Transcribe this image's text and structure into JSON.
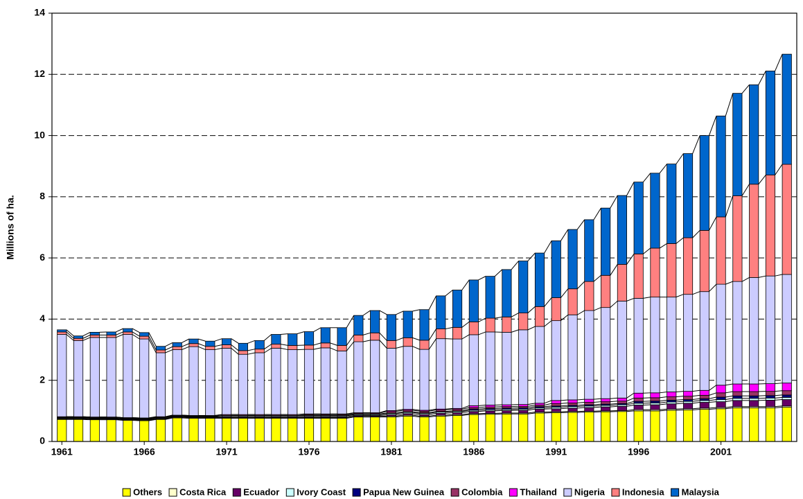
{
  "chart_data": {
    "type": "stacked_bar",
    "y_label": "Millions of ha.",
    "x": [
      1961,
      1962,
      1963,
      1964,
      1965,
      1966,
      1967,
      1968,
      1969,
      1970,
      1971,
      1972,
      1973,
      1974,
      1975,
      1976,
      1977,
      1978,
      1979,
      1980,
      1981,
      1982,
      1983,
      1984,
      1985,
      1986,
      1987,
      1988,
      1989,
      1990,
      1991,
      1992,
      1993,
      1994,
      1995,
      1996,
      1997,
      1998,
      1999,
      2000,
      2001,
      2002,
      2003,
      2004,
      2005
    ],
    "xlim": [
      1960.4,
      2005.6
    ],
    "xticks": [
      1961,
      1966,
      1971,
      1976,
      1981,
      1986,
      1991,
      1996,
      2001
    ],
    "ylim": [
      0,
      14
    ],
    "yticks": [
      0,
      2,
      4,
      6,
      8,
      10,
      12,
      14
    ],
    "grid": true,
    "legend": "bottom",
    "series": [
      {
        "name": "Others",
        "color": "#ffff00",
        "values": [
          0.72,
          0.72,
          0.71,
          0.71,
          0.69,
          0.68,
          0.72,
          0.77,
          0.76,
          0.76,
          0.76,
          0.76,
          0.76,
          0.76,
          0.76,
          0.76,
          0.76,
          0.76,
          0.8,
          0.8,
          0.8,
          0.83,
          0.8,
          0.83,
          0.85,
          0.88,
          0.89,
          0.9,
          0.9,
          0.93,
          0.94,
          0.95,
          0.96,
          0.97,
          0.98,
          1.0,
          1.0,
          1.02,
          1.03,
          1.05,
          1.07,
          1.1,
          1.1,
          1.1,
          1.12
        ]
      },
      {
        "name": "Costa Rica",
        "color": "#ffffcc",
        "values": [
          0.02,
          0.02,
          0.02,
          0.02,
          0.02,
          0.02,
          0.02,
          0.02,
          0.02,
          0.02,
          0.02,
          0.02,
          0.02,
          0.02,
          0.02,
          0.02,
          0.02,
          0.02,
          0.02,
          0.02,
          0.03,
          0.03,
          0.03,
          0.03,
          0.03,
          0.03,
          0.03,
          0.03,
          0.03,
          0.03,
          0.03,
          0.03,
          0.03,
          0.03,
          0.03,
          0.04,
          0.04,
          0.04,
          0.04,
          0.04,
          0.04,
          0.04,
          0.04,
          0.04,
          0.04
        ]
      },
      {
        "name": "Ecuador",
        "color": "#660066",
        "values": [
          0.02,
          0.02,
          0.02,
          0.02,
          0.02,
          0.02,
          0.02,
          0.02,
          0.02,
          0.02,
          0.03,
          0.03,
          0.03,
          0.03,
          0.03,
          0.03,
          0.03,
          0.03,
          0.03,
          0.03,
          0.04,
          0.05,
          0.05,
          0.06,
          0.06,
          0.07,
          0.08,
          0.08,
          0.09,
          0.1,
          0.1,
          0.11,
          0.12,
          0.13,
          0.14,
          0.15,
          0.16,
          0.17,
          0.18,
          0.19,
          0.19,
          0.2,
          0.2,
          0.21,
          0.21
        ]
      },
      {
        "name": "Ivory Coast",
        "color": "#ccffff",
        "values": [
          0.02,
          0.02,
          0.02,
          0.02,
          0.02,
          0.02,
          0.02,
          0.02,
          0.02,
          0.02,
          0.03,
          0.03,
          0.03,
          0.03,
          0.03,
          0.03,
          0.03,
          0.03,
          0.03,
          0.03,
          0.04,
          0.04,
          0.04,
          0.04,
          0.04,
          0.04,
          0.04,
          0.04,
          0.04,
          0.04,
          0.05,
          0.05,
          0.05,
          0.05,
          0.05,
          0.06,
          0.06,
          0.06,
          0.06,
          0.06,
          0.07,
          0.07,
          0.07,
          0.07,
          0.07
        ]
      },
      {
        "name": "Papua New Guinea",
        "color": "#000080",
        "values": [
          0.01,
          0.01,
          0.01,
          0.01,
          0.01,
          0.01,
          0.01,
          0.01,
          0.01,
          0.01,
          0.01,
          0.01,
          0.01,
          0.01,
          0.01,
          0.02,
          0.02,
          0.02,
          0.02,
          0.02,
          0.02,
          0.02,
          0.02,
          0.02,
          0.02,
          0.04,
          0.04,
          0.04,
          0.04,
          0.04,
          0.04,
          0.04,
          0.04,
          0.04,
          0.04,
          0.06,
          0.06,
          0.06,
          0.06,
          0.06,
          0.08,
          0.08,
          0.08,
          0.08,
          0.08
        ]
      },
      {
        "name": "Colombia",
        "color": "#993366",
        "values": [
          0.02,
          0.02,
          0.02,
          0.02,
          0.02,
          0.02,
          0.02,
          0.02,
          0.02,
          0.02,
          0.03,
          0.03,
          0.03,
          0.03,
          0.03,
          0.03,
          0.03,
          0.03,
          0.03,
          0.03,
          0.05,
          0.05,
          0.05,
          0.05,
          0.05,
          0.05,
          0.05,
          0.05,
          0.05,
          0.05,
          0.08,
          0.08,
          0.08,
          0.08,
          0.08,
          0.11,
          0.11,
          0.11,
          0.11,
          0.11,
          0.14,
          0.14,
          0.14,
          0.14,
          0.14
        ]
      },
      {
        "name": "Thailand",
        "color": "#ff00ff",
        "values": [
          0,
          0,
          0,
          0,
          0,
          0,
          0,
          0,
          0,
          0,
          0,
          0,
          0,
          0,
          0,
          0.01,
          0.01,
          0.01,
          0.01,
          0.01,
          0.03,
          0.03,
          0.03,
          0.03,
          0.03,
          0.06,
          0.06,
          0.06,
          0.06,
          0.06,
          0.1,
          0.1,
          0.1,
          0.1,
          0.1,
          0.16,
          0.16,
          0.16,
          0.16,
          0.16,
          0.25,
          0.25,
          0.25,
          0.25,
          0.25
        ]
      },
      {
        "name": "Nigeria",
        "color": "#ccccff",
        "values": [
          2.69,
          2.49,
          2.6,
          2.6,
          2.72,
          2.58,
          2.09,
          2.14,
          2.25,
          2.15,
          2.17,
          1.97,
          2.02,
          2.17,
          2.12,
          2.11,
          2.16,
          2.06,
          2.32,
          2.37,
          2.04,
          2.06,
          1.99,
          2.3,
          2.27,
          2.32,
          2.39,
          2.37,
          2.44,
          2.51,
          2.61,
          2.78,
          2.9,
          2.98,
          3.17,
          3.1,
          3.13,
          3.1,
          3.17,
          3.23,
          3.3,
          3.35,
          3.48,
          3.52,
          3.55
        ]
      },
      {
        "name": "Indonesia",
        "color": "#ff8080",
        "values": [
          0.08,
          0.07,
          0.08,
          0.08,
          0.08,
          0.09,
          0.09,
          0.1,
          0.1,
          0.11,
          0.11,
          0.12,
          0.12,
          0.13,
          0.14,
          0.14,
          0.16,
          0.18,
          0.22,
          0.24,
          0.25,
          0.28,
          0.3,
          0.32,
          0.38,
          0.42,
          0.45,
          0.5,
          0.55,
          0.65,
          0.75,
          0.85,
          0.95,
          1.05,
          1.2,
          1.45,
          1.6,
          1.75,
          1.85,
          2.0,
          2.2,
          2.8,
          3.05,
          3.3,
          3.6
        ]
      },
      {
        "name": "Malaysia",
        "color": "#0066cc",
        "values": [
          0.07,
          0.08,
          0.09,
          0.1,
          0.11,
          0.12,
          0.12,
          0.13,
          0.15,
          0.17,
          0.2,
          0.24,
          0.28,
          0.32,
          0.38,
          0.44,
          0.5,
          0.58,
          0.64,
          0.73,
          0.85,
          0.87,
          1.0,
          1.08,
          1.22,
          1.37,
          1.37,
          1.55,
          1.7,
          1.75,
          1.86,
          1.94,
          2.02,
          2.2,
          2.25,
          2.35,
          2.45,
          2.6,
          2.75,
          3.1,
          3.3,
          3.35,
          3.25,
          3.4,
          3.6
        ]
      }
    ]
  }
}
